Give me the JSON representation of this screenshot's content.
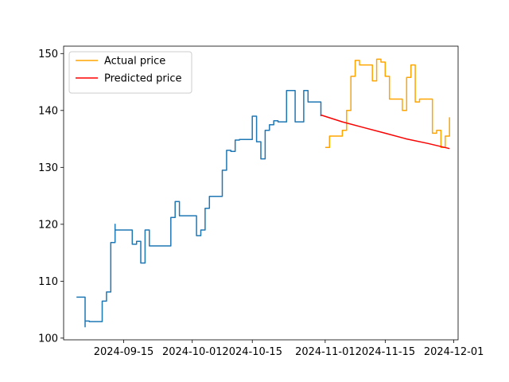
{
  "chart_data": {
    "type": "line",
    "title": "",
    "xlabel": "",
    "ylabel": "",
    "x_axis": "date",
    "xlim": [
      "2024-09-01",
      "2024-12-02"
    ],
    "ylim": [
      99.7,
      151.3
    ],
    "x_ticks": [
      "2024-09-15",
      "2024-10-01",
      "2024-10-15",
      "2024-11-01",
      "2024-11-15",
      "2024-12-01"
    ],
    "y_ticks": [
      100,
      110,
      120,
      130,
      140,
      150
    ],
    "grid": false,
    "legend_position": "upper-left",
    "series": [
      {
        "name": "",
        "color": "#1f77b4",
        "x": [
          "2024-09-04",
          "2024-09-05",
          "2024-09-06",
          "2024-09-06",
          "2024-09-07",
          "2024-09-09",
          "2024-09-10",
          "2024-09-10",
          "2024-09-11",
          "2024-09-11",
          "2024-09-12",
          "2024-09-13",
          "2024-09-13",
          "2024-09-14",
          "2024-09-16",
          "2024-09-17",
          "2024-09-18",
          "2024-09-19",
          "2024-09-20",
          "2024-09-21",
          "2024-09-22",
          "2024-09-23",
          "2024-09-24",
          "2024-09-26",
          "2024-09-27",
          "2024-09-28",
          "2024-09-29",
          "2024-09-30",
          "2024-10-01",
          "2024-10-02",
          "2024-10-03",
          "2024-10-04",
          "2024-10-05",
          "2024-10-06",
          "2024-10-07",
          "2024-10-08",
          "2024-10-09",
          "2024-10-10",
          "2024-10-11",
          "2024-10-12",
          "2024-10-13",
          "2024-10-14",
          "2024-10-15",
          "2024-10-16",
          "2024-10-17",
          "2024-10-18",
          "2024-10-19",
          "2024-10-20",
          "2024-10-21",
          "2024-10-22",
          "2024-10-23",
          "2024-10-24",
          "2024-10-25",
          "2024-10-26",
          "2024-10-27",
          "2024-10-28",
          "2024-10-29",
          "2024-10-30",
          "2024-10-31"
        ],
        "y": [
          107.2,
          107.2,
          102.0,
          103.0,
          102.9,
          102.9,
          106.0,
          106.5,
          108.0,
          108.1,
          116.8,
          120.0,
          119.0,
          119.0,
          119.0,
          116.5,
          117.0,
          113.2,
          119.0,
          116.2,
          116.2,
          116.2,
          116.2,
          121.2,
          124.0,
          121.5,
          121.5,
          121.5,
          121.5,
          118.0,
          119.0,
          122.8,
          124.9,
          124.9,
          124.9,
          129.5,
          133.0,
          132.8,
          134.8,
          134.9,
          134.9,
          134.9,
          139.0,
          134.5,
          131.5,
          136.5,
          137.5,
          138.2,
          138.0,
          138.0,
          143.5,
          143.5,
          138.0,
          138.0,
          143.5,
          141.5,
          141.5,
          141.5,
          139.0
        ]
      },
      {
        "name": "Actual price",
        "color": "#ffa500",
        "x": [
          "2024-11-01",
          "2024-11-02",
          "2024-11-03",
          "2024-11-04",
          "2024-11-05",
          "2024-11-06",
          "2024-11-07",
          "2024-11-08",
          "2024-11-09",
          "2024-11-10",
          "2024-11-11",
          "2024-11-12",
          "2024-11-13",
          "2024-11-14",
          "2024-11-15",
          "2024-11-16",
          "2024-11-17",
          "2024-11-18",
          "2024-11-19",
          "2024-11-20",
          "2024-11-21",
          "2024-11-22",
          "2024-11-23",
          "2024-11-24",
          "2024-11-25",
          "2024-11-26",
          "2024-11-27",
          "2024-11-28",
          "2024-11-29",
          "2024-11-30"
        ],
        "y": [
          133.5,
          135.5,
          135.5,
          135.5,
          136.5,
          140.0,
          146.0,
          148.8,
          148.0,
          148.0,
          148.0,
          145.2,
          149.0,
          148.5,
          146.0,
          142.0,
          142.0,
          142.0,
          140.0,
          145.8,
          148.0,
          141.5,
          142.0,
          142.0,
          142.0,
          136.0,
          136.5,
          133.5,
          135.5,
          138.8
        ]
      },
      {
        "name": "Predicted price",
        "color": "#ff0000",
        "x": [
          "2024-10-31",
          "2024-11-05",
          "2024-11-10",
          "2024-11-15",
          "2024-11-20",
          "2024-11-25",
          "2024-11-30"
        ],
        "y": [
          139.2,
          138.0,
          137.0,
          136.0,
          135.0,
          134.2,
          133.3
        ]
      }
    ]
  }
}
